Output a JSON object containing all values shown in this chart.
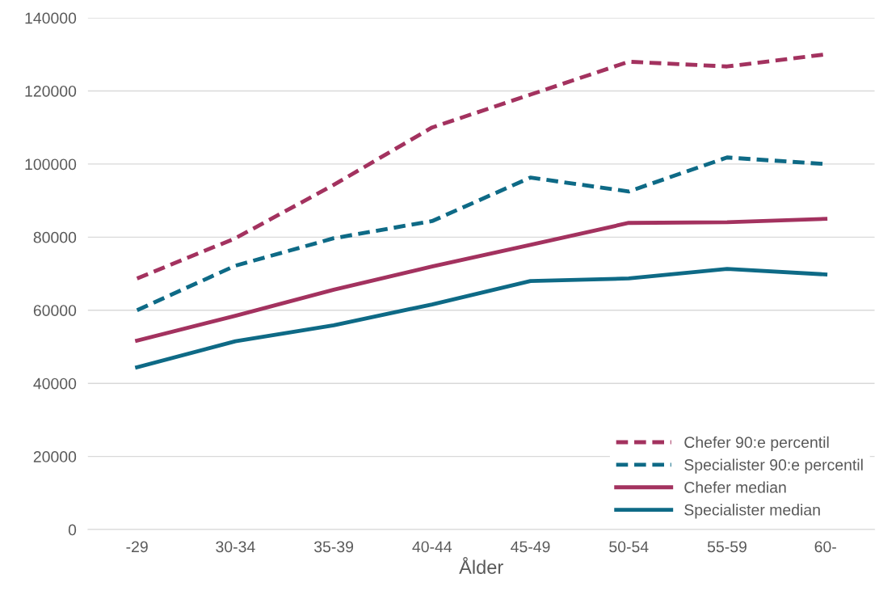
{
  "chart_data": {
    "type": "line",
    "xlabel": "Ålder",
    "categories": [
      "-29",
      "30-34",
      "35-39",
      "40-44",
      "45-49",
      "50-54",
      "55-59",
      "60-"
    ],
    "series": [
      {
        "name": "Chefer 90:e percentil",
        "color": "#a3325f",
        "line_style": "dashed",
        "values": [
          68700,
          79700,
          94300,
          110000,
          119000,
          128000,
          126700,
          130000
        ]
      },
      {
        "name": "Specialister 90:e percentil",
        "color": "#0e6a86",
        "line_style": "dashed",
        "values": [
          60000,
          72200,
          79700,
          84400,
          96300,
          92500,
          101800,
          100000
        ]
      },
      {
        "name": "Chefer median",
        "color": "#a3325f",
        "line_style": "solid",
        "values": [
          51700,
          58500,
          65600,
          72000,
          77900,
          83900,
          84100,
          85000
        ]
      },
      {
        "name": "Specialister median",
        "color": "#0e6a86",
        "line_style": "solid",
        "values": [
          44400,
          51500,
          55900,
          61600,
          68000,
          68700,
          71300,
          69800
        ]
      }
    ],
    "ylim": [
      0,
      140000
    ],
    "yticks": [
      0,
      20000,
      40000,
      60000,
      80000,
      100000,
      120000,
      140000
    ],
    "grid": "y",
    "legend": "bottom right",
    "marker": "none"
  }
}
